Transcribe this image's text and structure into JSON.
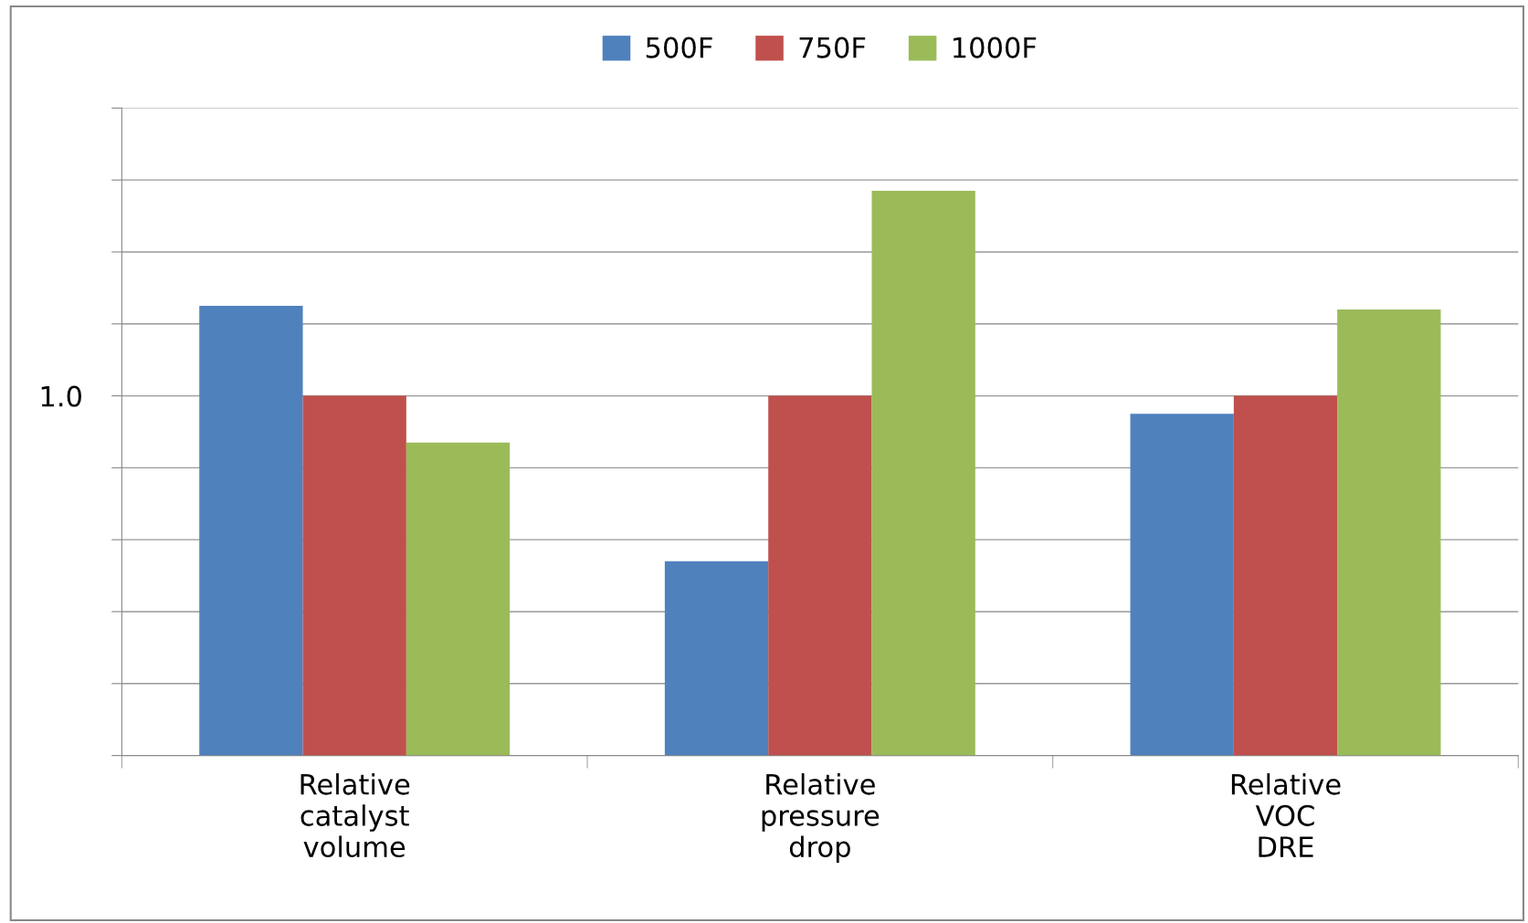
{
  "chart_data": {
    "type": "bar",
    "categories": [
      "Relative\ncatalyst\nvolume",
      "Relative\npressure\ndrop",
      "Relative\nVOC\nDRE"
    ],
    "series": [
      {
        "name": "500F",
        "color": "#4f81bd",
        "values": [
          1.25,
          0.54,
          0.95
        ]
      },
      {
        "name": "750F",
        "color": "#c0504d",
        "values": [
          1.0,
          1.0,
          1.0
        ]
      },
      {
        "name": "1000F",
        "color": "#9bbb59",
        "values": [
          0.87,
          1.57,
          1.24
        ]
      }
    ],
    "ylim": [
      0,
      1.8
    ],
    "yticks": [
      {
        "value": 0,
        "label": null
      },
      {
        "value": 0.2,
        "label": null
      },
      {
        "value": 0.4,
        "label": null
      },
      {
        "value": 0.6,
        "label": null
      },
      {
        "value": 0.8,
        "label": null
      },
      {
        "value": 1.0,
        "label": "1.0"
      },
      {
        "value": 1.2,
        "label": null
      },
      {
        "value": 1.4,
        "label": null
      },
      {
        "value": 1.6,
        "label": null
      },
      {
        "value": 1.8,
        "label": null
      }
    ],
    "grid": "y",
    "legend": "top"
  }
}
